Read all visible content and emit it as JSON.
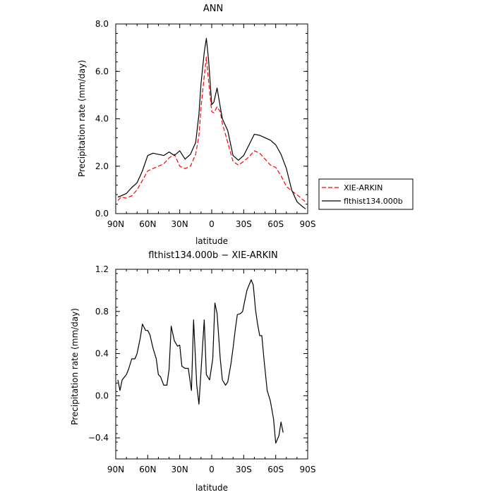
{
  "chart_data": [
    {
      "type": "line",
      "title": "ANN",
      "xlabel": "latitude",
      "ylabel": "Precipitation rate  (mm/day)",
      "xlim": [
        90,
        -90
      ],
      "ylim": [
        0,
        8
      ],
      "x_ticks": [
        90,
        60,
        30,
        0,
        -30,
        -60,
        -90
      ],
      "x_tick_labels": [
        "90N",
        "60N",
        "30N",
        "0",
        "30S",
        "60S",
        "90S"
      ],
      "y_ticks": [
        0,
        2,
        4,
        6,
        8
      ],
      "y_tick_labels": [
        "0.0",
        "2.0",
        "4.0",
        "6.0",
        "8.0"
      ],
      "legend_position": "right",
      "grid": false,
      "series": [
        {
          "name": "XIE-ARKIN",
          "color": "#ff0000",
          "dash": "dashed",
          "points": [
            [
              88,
              0.55
            ],
            [
              85,
              0.7
            ],
            [
              80,
              0.65
            ],
            [
              75,
              0.75
            ],
            [
              70,
              1.0
            ],
            [
              65,
              1.4
            ],
            [
              60,
              1.8
            ],
            [
              55,
              1.9
            ],
            [
              50,
              2.0
            ],
            [
              45,
              2.1
            ],
            [
              40,
              2.35
            ],
            [
              35,
              2.5
            ],
            [
              30,
              2.0
            ],
            [
              25,
              1.9
            ],
            [
              20,
              2.0
            ],
            [
              15,
              2.5
            ],
            [
              12,
              3.3
            ],
            [
              10,
              4.5
            ],
            [
              7,
              5.8
            ],
            [
              5,
              6.6
            ],
            [
              3,
              5.6
            ],
            [
              0,
              4.3
            ],
            [
              -2,
              4.25
            ],
            [
              -5,
              4.5
            ],
            [
              -8,
              4.3
            ],
            [
              -10,
              3.8
            ],
            [
              -15,
              3.0
            ],
            [
              -20,
              2.2
            ],
            [
              -25,
              2.05
            ],
            [
              -30,
              2.2
            ],
            [
              -35,
              2.4
            ],
            [
              -40,
              2.65
            ],
            [
              -45,
              2.55
            ],
            [
              -50,
              2.3
            ],
            [
              -55,
              2.05
            ],
            [
              -60,
              1.95
            ],
            [
              -65,
              1.6
            ],
            [
              -70,
              1.15
            ],
            [
              -75,
              0.95
            ],
            [
              -80,
              0.8
            ],
            [
              -85,
              0.6
            ],
            [
              -88,
              0.5
            ]
          ]
        },
        {
          "name": "flthist134.000b",
          "color": "#000000",
          "dash": "solid",
          "points": [
            [
              88,
              0.7
            ],
            [
              85,
              0.75
            ],
            [
              80,
              0.85
            ],
            [
              75,
              1.1
            ],
            [
              70,
              1.3
            ],
            [
              65,
              1.8
            ],
            [
              60,
              2.45
            ],
            [
              55,
              2.55
            ],
            [
              50,
              2.5
            ],
            [
              45,
              2.45
            ],
            [
              40,
              2.6
            ],
            [
              35,
              2.45
            ],
            [
              30,
              2.65
            ],
            [
              25,
              2.3
            ],
            [
              20,
              2.5
            ],
            [
              15,
              3.0
            ],
            [
              12,
              4.2
            ],
            [
              10,
              5.5
            ],
            [
              7,
              6.8
            ],
            [
              5,
              7.4
            ],
            [
              3,
              6.5
            ],
            [
              0,
              4.6
            ],
            [
              -2,
              4.7
            ],
            [
              -5,
              5.3
            ],
            [
              -8,
              4.5
            ],
            [
              -10,
              4.0
            ],
            [
              -15,
              3.5
            ],
            [
              -20,
              2.45
            ],
            [
              -25,
              2.25
            ],
            [
              -30,
              2.45
            ],
            [
              -35,
              2.9
            ],
            [
              -40,
              3.35
            ],
            [
              -45,
              3.3
            ],
            [
              -50,
              3.2
            ],
            [
              -55,
              3.1
            ],
            [
              -60,
              2.9
            ],
            [
              -65,
              2.5
            ],
            [
              -70,
              1.9
            ],
            [
              -75,
              1.0
            ],
            [
              -80,
              0.5
            ],
            [
              -85,
              0.3
            ],
            [
              -88,
              0.2
            ]
          ]
        }
      ]
    },
    {
      "type": "line",
      "title": "flthist134.000b  −  XIE-ARKIN",
      "xlabel": "latitude",
      "ylabel": "Precipitation rate  (mm/day)",
      "xlim": [
        90,
        -90
      ],
      "ylim": [
        -0.6,
        1.2
      ],
      "x_ticks": [
        90,
        60,
        30,
        0,
        -30,
        -60,
        -90
      ],
      "x_tick_labels": [
        "90N",
        "60N",
        "30N",
        "0",
        "30S",
        "60S",
        "90S"
      ],
      "y_ticks": [
        -0.4,
        0,
        0.4,
        0.8,
        1.2
      ],
      "y_tick_labels": [
        "−0.4",
        "0.0",
        "0.4",
        "0.8",
        "1.2"
      ],
      "grid": false,
      "series": [
        {
          "color": "#000000",
          "dash": "solid",
          "points": [
            [
              88,
              0.15
            ],
            [
              86,
              0.05
            ],
            [
              84,
              0.15
            ],
            [
              80,
              0.2
            ],
            [
              78,
              0.25
            ],
            [
              75,
              0.35
            ],
            [
              72,
              0.35
            ],
            [
              70,
              0.4
            ],
            [
              67,
              0.55
            ],
            [
              65,
              0.68
            ],
            [
              62,
              0.62
            ],
            [
              60,
              0.62
            ],
            [
              58,
              0.58
            ],
            [
              55,
              0.45
            ],
            [
              52,
              0.35
            ],
            [
              50,
              0.2
            ],
            [
              48,
              0.18
            ],
            [
              45,
              0.1
            ],
            [
              42,
              0.1
            ],
            [
              40,
              0.25
            ],
            [
              38,
              0.66
            ],
            [
              35,
              0.52
            ],
            [
              32,
              0.47
            ],
            [
              30,
              0.48
            ],
            [
              28,
              0.28
            ],
            [
              25,
              0.26
            ],
            [
              22,
              0.26
            ],
            [
              19,
              0.05
            ],
            [
              17,
              0.72
            ],
            [
              14,
              0.1
            ],
            [
              12,
              -0.08
            ],
            [
              9,
              0.4
            ],
            [
              7,
              0.72
            ],
            [
              5,
              0.2
            ],
            [
              2,
              0.15
            ],
            [
              -1,
              0.35
            ],
            [
              -3,
              0.88
            ],
            [
              -5,
              0.78
            ],
            [
              -8,
              0.35
            ],
            [
              -10,
              0.15
            ],
            [
              -13,
              0.1
            ],
            [
              -15,
              0.13
            ],
            [
              -18,
              0.3
            ],
            [
              -20,
              0.45
            ],
            [
              -22,
              0.62
            ],
            [
              -24,
              0.77
            ],
            [
              -27,
              0.78
            ],
            [
              -29,
              0.8
            ],
            [
              -31,
              0.9
            ],
            [
              -33,
              1.0
            ],
            [
              -35,
              1.05
            ],
            [
              -37,
              1.1
            ],
            [
              -39,
              1.05
            ],
            [
              -41,
              0.82
            ],
            [
              -43,
              0.68
            ],
            [
              -45,
              0.57
            ],
            [
              -47,
              0.57
            ],
            [
              -49,
              0.35
            ],
            [
              -52,
              0.05
            ],
            [
              -55,
              -0.05
            ],
            [
              -58,
              -0.22
            ],
            [
              -60,
              -0.45
            ],
            [
              -63,
              -0.38
            ],
            [
              -65,
              -0.25
            ],
            [
              -67,
              -0.35
            ]
          ]
        }
      ]
    }
  ]
}
